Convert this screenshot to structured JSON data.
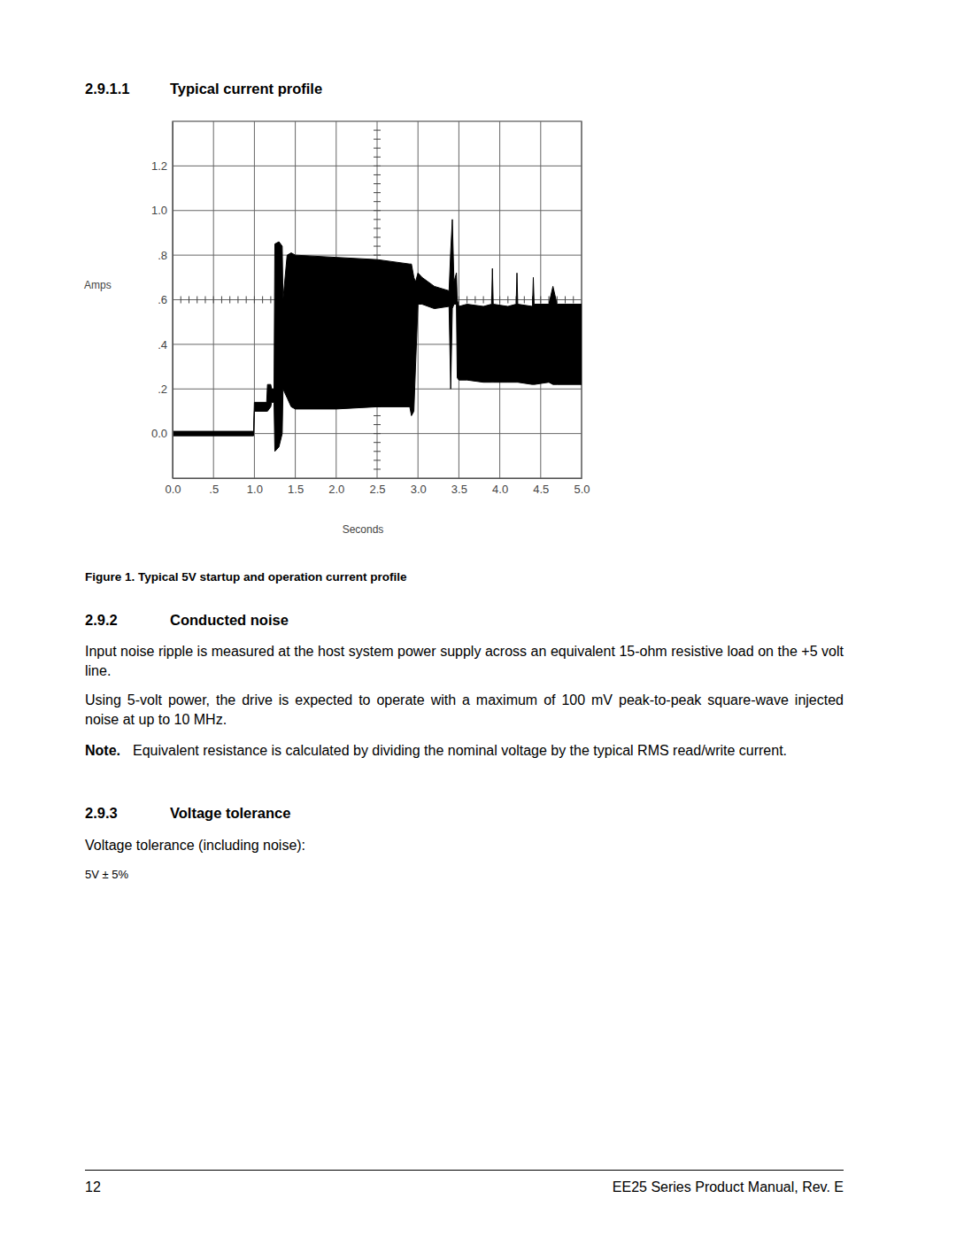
{
  "page": {
    "section_title": {
      "number": "2.9.1.1",
      "text": "Typical current profile"
    },
    "figure_caption": "Figure 1. Typical 5V startup and operation current profile",
    "sections": [
      {
        "number": "2.9.2",
        "title": "Conducted noise",
        "paragraphs": [
          "Input noise ripple is measured at the host system power supply across an equivalent 15-ohm resistive load on the +5 volt line.",
          "Using 5-volt power, the drive is expected to operate with a maximum of 100 mV peak-to-peak square-wave injected noise at up to 10 MHz."
        ],
        "note": {
          "label": "Note.",
          "text": "Equivalent resistance is calculated by dividing the nominal voltage by the typical RMS read/write current."
        }
      },
      {
        "number": "2.9.3",
        "title": "Voltage tolerance",
        "paragraphs": [
          "Voltage tolerance (including noise):"
        ],
        "value": "5V ± 5%"
      }
    ],
    "footer": {
      "page_number": "12",
      "text": "EE25 Series Product Manual, Rev. E"
    }
  },
  "chart_data": {
    "type": "range_area",
    "x_label": "Seconds",
    "y_label": "Amps",
    "x": [
      0.0,
      0.5,
      0.99,
      1.0,
      1.15,
      1.16,
      1.2,
      1.21,
      1.24,
      1.25,
      1.3,
      1.34,
      1.35,
      1.4,
      1.45,
      1.5,
      2.0,
      2.5,
      2.9,
      2.92,
      2.95,
      2.97,
      3.0,
      3.05,
      3.2,
      3.38,
      3.4,
      3.42,
      3.44,
      3.47,
      3.48,
      3.5,
      3.6,
      3.8,
      3.9,
      3.91,
      3.92,
      4.1,
      4.2,
      4.21,
      4.22,
      4.4,
      4.41,
      4.42,
      4.6,
      4.65,
      4.7,
      5.0
    ],
    "upper": [
      0.01,
      0.01,
      0.01,
      0.14,
      0.14,
      0.22,
      0.22,
      0.2,
      0.2,
      0.85,
      0.86,
      0.84,
      0.6,
      0.8,
      0.81,
      0.8,
      0.79,
      0.78,
      0.76,
      0.76,
      0.7,
      0.68,
      0.72,
      0.7,
      0.66,
      0.64,
      0.82,
      0.96,
      0.68,
      0.72,
      0.6,
      0.57,
      0.58,
      0.57,
      0.58,
      0.74,
      0.58,
      0.57,
      0.58,
      0.72,
      0.58,
      0.57,
      0.7,
      0.58,
      0.58,
      0.66,
      0.58,
      0.58
    ],
    "lower": [
      -0.01,
      -0.01,
      -0.01,
      0.1,
      0.1,
      0.1,
      0.12,
      0.14,
      0.14,
      -0.08,
      -0.06,
      0.0,
      0.2,
      0.16,
      0.12,
      0.11,
      0.11,
      0.12,
      0.12,
      0.08,
      0.1,
      0.3,
      0.58,
      0.58,
      0.56,
      0.57,
      0.2,
      0.56,
      0.58,
      0.58,
      0.25,
      0.24,
      0.24,
      0.23,
      0.23,
      0.23,
      0.23,
      0.23,
      0.23,
      0.23,
      0.23,
      0.22,
      0.22,
      0.22,
      0.23,
      0.22,
      0.22,
      0.22
    ],
    "color": "#000000",
    "xlim": [
      0,
      5
    ],
    "ylim": [
      -0.2,
      1.4
    ],
    "xticks": [
      {
        "value": 0,
        "label": "0.0"
      },
      {
        "value": 0.5,
        "label": ".5"
      },
      {
        "value": 1,
        "label": "1.0"
      },
      1.5,
      {
        "value": 2,
        "label": "2.0"
      },
      2.5,
      {
        "value": 3,
        "label": "3.0"
      },
      3.5,
      {
        "value": 4,
        "label": "4.0"
      },
      4.5,
      {
        "value": 5,
        "label": "5.0"
      }
    ],
    "yticks": [
      {
        "value": 0,
        "label": "0.0"
      },
      {
        "value": 0.2,
        "label": ".2"
      },
      {
        "value": 0.4,
        "label": ".4"
      },
      {
        "value": 0.6,
        "label": ".6"
      },
      {
        "value": 0.8,
        "label": ".8"
      },
      {
        "value": 1,
        "label": "1.0"
      },
      1.2
    ],
    "grid": true
  }
}
